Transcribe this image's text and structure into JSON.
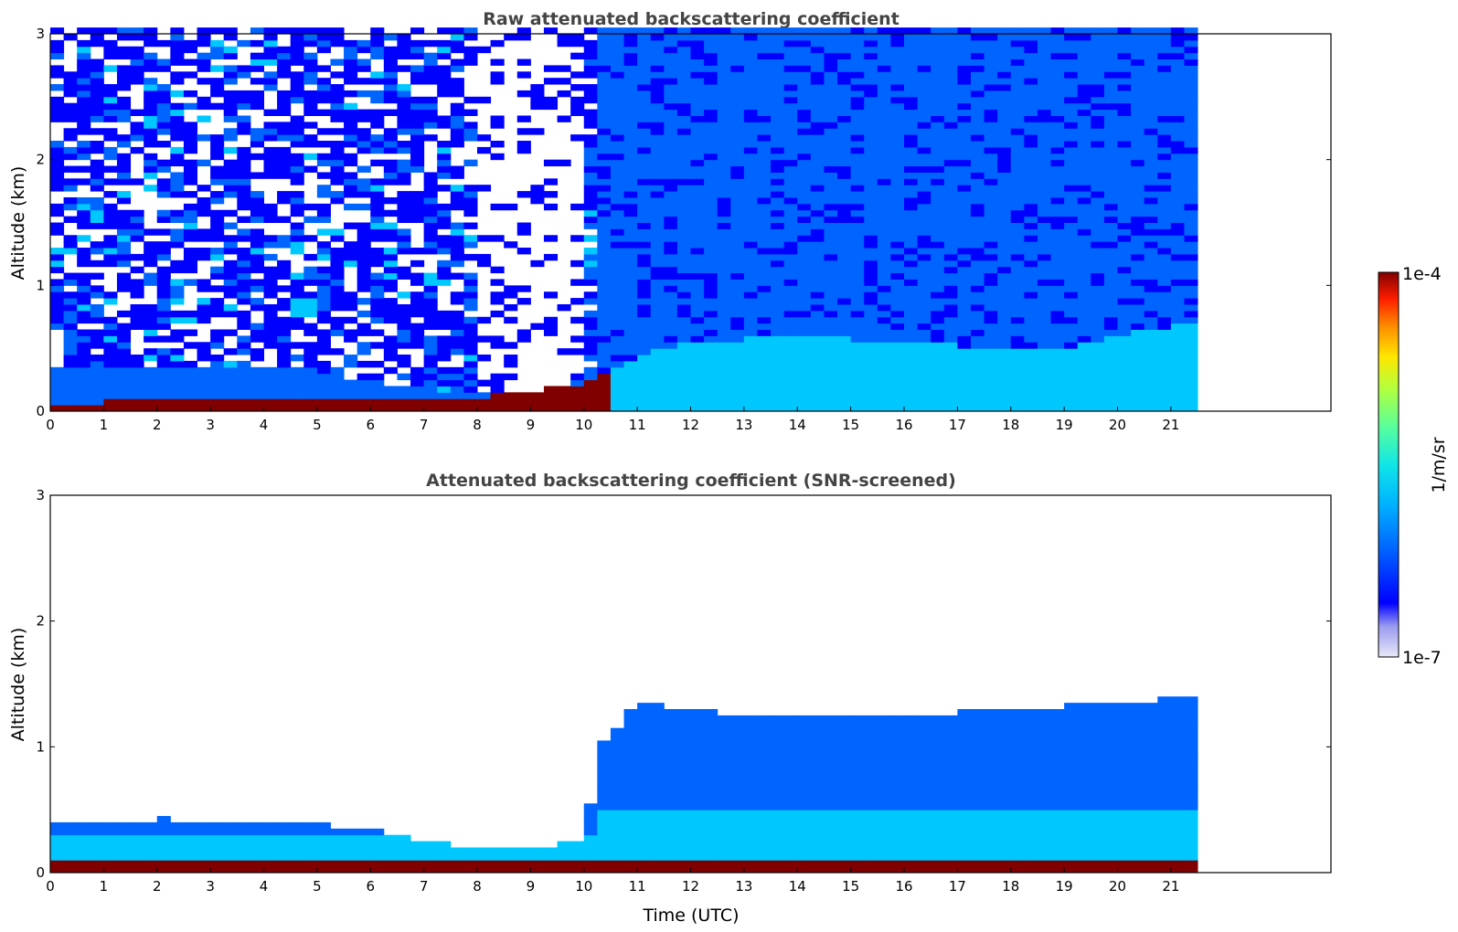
{
  "chart_data": [
    {
      "type": "heatmap",
      "title": "Raw attenuated backscattering coefficient",
      "xlabel": "",
      "ylabel": "Altitude (km)",
      "xlim": [
        0,
        24
      ],
      "ylim": [
        0,
        3
      ],
      "x_ticks": [
        "0",
        "1",
        "2",
        "3",
        "4",
        "5",
        "6",
        "7",
        "8",
        "9",
        "10",
        "11",
        "12",
        "13",
        "14",
        "15",
        "16",
        "17",
        "18",
        "19",
        "20",
        "21"
      ],
      "y_ticks": [
        "0",
        "1",
        "2",
        "3"
      ],
      "data_x_range": [
        0,
        21.3
      ],
      "features": {
        "surface_layer_top_km": [
          [
            0,
            0.07
          ],
          [
            2,
            0.08
          ],
          [
            4,
            0.09
          ],
          [
            6,
            0.1
          ],
          [
            7,
            0.1
          ],
          [
            8,
            0.12
          ],
          [
            9,
            0.15
          ],
          [
            10,
            0.22
          ],
          [
            10.3,
            0.3
          ]
        ],
        "boundary_layer_top_km": [
          [
            0,
            0.35
          ],
          [
            4,
            0.35
          ],
          [
            7,
            0.18
          ],
          [
            9,
            0.15
          ],
          [
            10.3,
            0.3
          ],
          [
            11,
            0.45
          ],
          [
            12,
            0.55
          ],
          [
            14,
            0.6
          ],
          [
            16,
            0.55
          ],
          [
            18,
            0.5
          ],
          [
            19,
            0.5
          ],
          [
            20,
            0.6
          ],
          [
            21.3,
            0.7
          ]
        ],
        "strong_layer_event": {
          "time": 11.5,
          "altitude_km": 0.55
        },
        "noise_background": "dense speckle up to 3 km"
      }
    },
    {
      "type": "heatmap",
      "title": "Attenuated backscattering coefficient (SNR-screened)",
      "xlabel": "Time (UTC)",
      "ylabel": "Altitude (km)",
      "xlim": [
        0,
        24
      ],
      "ylim": [
        0,
        3
      ],
      "x_ticks": [
        "0",
        "1",
        "2",
        "3",
        "4",
        "5",
        "6",
        "7",
        "8",
        "9",
        "10",
        "11",
        "12",
        "13",
        "14",
        "15",
        "16",
        "17",
        "18",
        "19",
        "20",
        "21"
      ],
      "y_ticks": [
        "0",
        "1",
        "2",
        "3"
      ],
      "data_x_range": [
        0,
        21.3
      ],
      "features": {
        "screened_layer_top_km": [
          [
            0,
            0.4
          ],
          [
            1,
            0.38
          ],
          [
            2,
            0.43
          ],
          [
            4,
            0.4
          ],
          [
            5,
            0.38
          ],
          [
            6,
            0.35
          ],
          [
            7,
            0.25
          ],
          [
            8,
            0.2
          ],
          [
            9,
            0.2
          ],
          [
            10,
            0.25
          ],
          [
            10.3,
            1.0
          ],
          [
            11,
            1.35
          ],
          [
            13,
            1.25
          ],
          [
            16,
            1.25
          ],
          [
            18,
            1.3
          ],
          [
            20,
            1.35
          ],
          [
            21.3,
            1.4
          ]
        ]
      }
    }
  ],
  "colorbar": {
    "label": "1/m/sr",
    "max_label": "1e-4",
    "min_label": "1e-7",
    "scale": "log",
    "range": [
      1e-07,
      0.0001
    ],
    "colormap": [
      "#ffffff",
      "#c8c8f0",
      "#0000ff",
      "#0064ff",
      "#00c8ff",
      "#32ffc8",
      "#96ff64",
      "#ffff00",
      "#ff9600",
      "#ff0000",
      "#800000"
    ]
  }
}
